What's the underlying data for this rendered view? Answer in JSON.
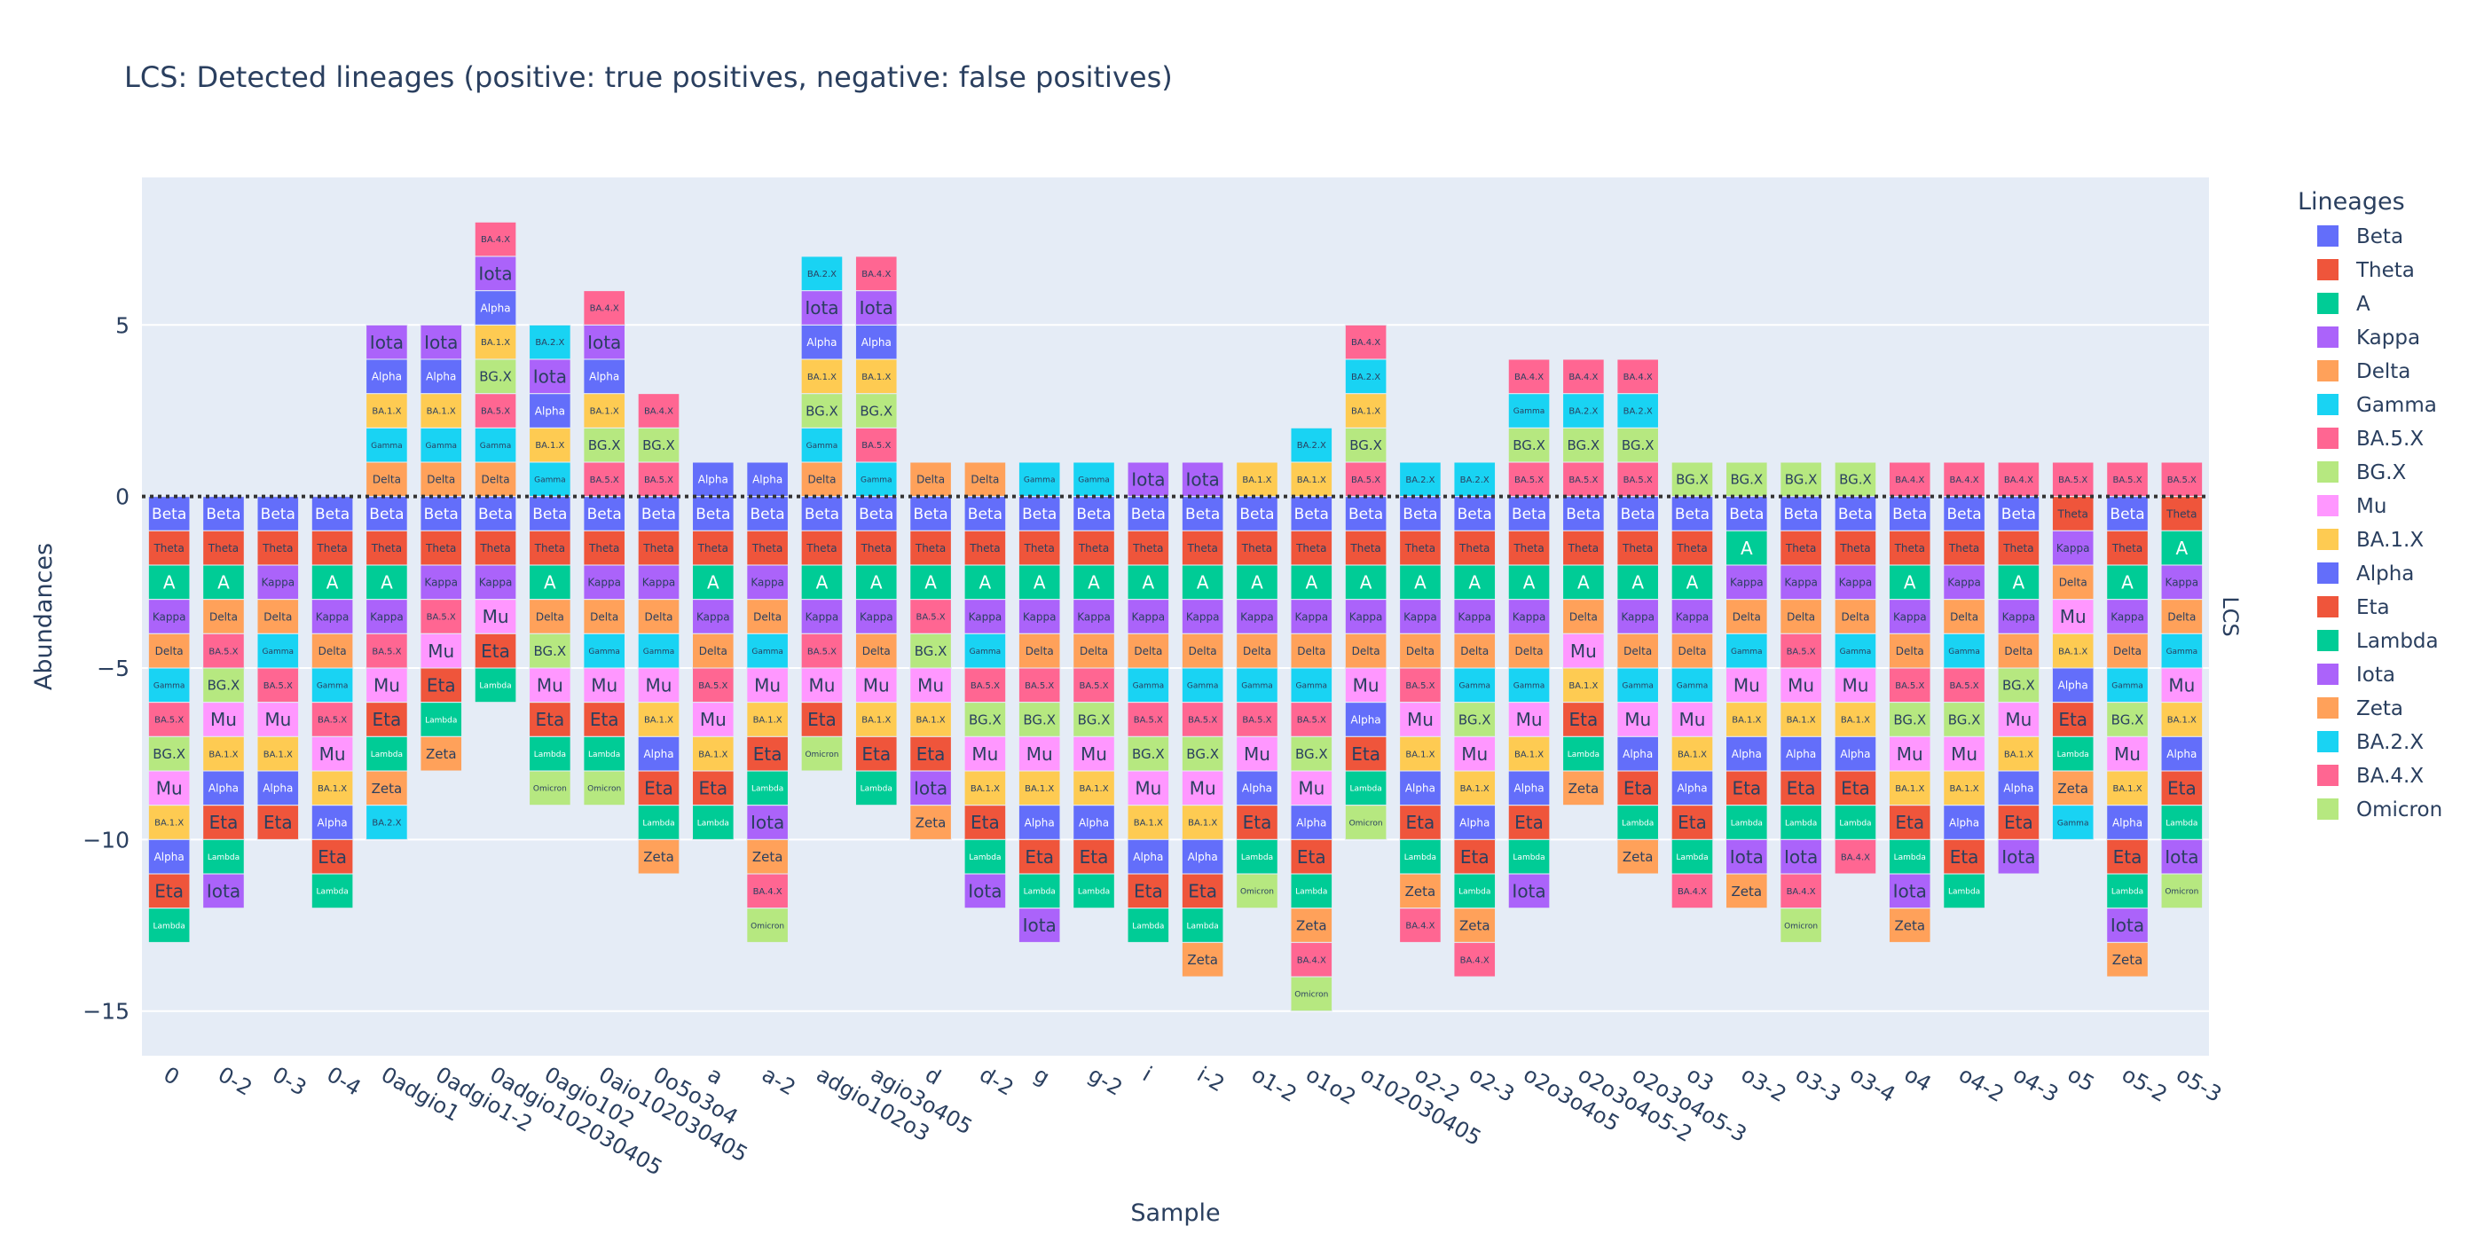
{
  "chart_data": {
    "type": "bar",
    "barmode": "relative",
    "title": "LCS: Detected lineages (positive: true positives, negative: false positives)",
    "xlabel": "Sample",
    "ylabel": "Abundances",
    "facet_label": "LCS",
    "legend_title": "Lineages",
    "legend_placement": "right",
    "ylim": [
      -16.3,
      9.3
    ],
    "yticks": [
      5,
      0,
      -5,
      -10,
      -15
    ],
    "zero_line": "dotted",
    "grid": true,
    "colors": {
      "Beta": "#636EFA",
      "Theta": "#EF553B",
      "A": "#00CC96",
      "Kappa": "#AB63FA",
      "Delta": "#FFA15A",
      "Gamma": "#19D3F3",
      "BA.5.X": "#FF6692",
      "BG.X": "#B6E880",
      "Mu": "#FF97FF",
      "BA.1.X": "#FECB52",
      "Alpha": "#636EFA",
      "Eta": "#EF553B",
      "Lambda": "#00CC96",
      "Iota": "#AB63FA",
      "Zeta": "#FFA15A",
      "BA.2.X": "#19D3F3",
      "BA.4.X": "#FF6692",
      "Omicron": "#B6E880"
    },
    "lineages": [
      "Beta",
      "Theta",
      "A",
      "Kappa",
      "Delta",
      "Gamma",
      "BA.5.X",
      "BG.X",
      "Mu",
      "BA.1.X",
      "Alpha",
      "Eta",
      "Lambda",
      "Iota",
      "Zeta",
      "BA.2.X",
      "BA.4.X",
      "Omicron"
    ],
    "categories": [
      "0",
      "0-2",
      "0-3",
      "0-4",
      "0adgio1",
      "0adgio1-2",
      "0adgio102030405",
      "0agio102",
      "0aio102030405",
      "0o5o3o4",
      "a",
      "a-2",
      "adgio102o3",
      "agio3o405",
      "d",
      "d-2",
      "g",
      "g-2",
      "i",
      "i-2",
      "o1-2",
      "o1o2",
      "o102030405",
      "o2-2",
      "o2-3",
      "o2o3o4o5",
      "o2o3o4o5-2",
      "o2o3o4o5-3",
      "o3",
      "o3-2",
      "o3-3",
      "o3-4",
      "o4",
      "o4-2",
      "o4-3",
      "o5",
      "o5-2",
      "o5-3"
    ],
    "samples": [
      {
        "pos": [],
        "neg": [
          "Beta",
          "Theta",
          "A",
          "Kappa",
          "Delta",
          "Gamma",
          "BA.5.X",
          "BG.X",
          "Mu",
          "BA.1.X",
          "Alpha",
          "Eta",
          "Lambda"
        ]
      },
      {
        "pos": [],
        "neg": [
          "Beta",
          "Theta",
          "A",
          "Delta",
          "BA.5.X",
          "BG.X",
          "Mu",
          "BA.1.X",
          "Alpha",
          "Eta",
          "Lambda",
          "Iota"
        ]
      },
      {
        "pos": [],
        "neg": [
          "Beta",
          "Theta",
          "Kappa",
          "Delta",
          "Gamma",
          "BA.5.X",
          "Mu",
          "BA.1.X",
          "Alpha",
          "Eta"
        ]
      },
      {
        "pos": [],
        "neg": [
          "Beta",
          "Theta",
          "A",
          "Kappa",
          "Delta",
          "Gamma",
          "BA.5.X",
          "Mu",
          "BA.1.X",
          "Alpha",
          "Eta",
          "Lambda"
        ]
      },
      {
        "pos": [
          "Delta",
          "Gamma",
          "BA.1.X",
          "Alpha",
          "Iota"
        ],
        "neg": [
          "Beta",
          "Theta",
          "A",
          "Kappa",
          "BA.5.X",
          "Mu",
          "Eta",
          "Lambda",
          "Zeta",
          "BA.2.X"
        ]
      },
      {
        "pos": [
          "Delta",
          "Gamma",
          "BA.1.X",
          "Alpha",
          "Iota"
        ],
        "neg": [
          "Beta",
          "Theta",
          "Kappa",
          "BA.5.X",
          "Mu",
          "Eta",
          "Lambda",
          "Zeta"
        ]
      },
      {
        "pos": [
          "Delta",
          "Gamma",
          "BA.5.X",
          "BG.X",
          "BA.1.X",
          "Alpha",
          "Iota",
          "BA.4.X"
        ],
        "neg": [
          "Beta",
          "Theta",
          "Kappa",
          "Mu",
          "Eta",
          "Lambda"
        ]
      },
      {
        "pos": [
          "Gamma",
          "BA.1.X",
          "Alpha",
          "Iota",
          "BA.2.X"
        ],
        "neg": [
          "Beta",
          "Theta",
          "A",
          "Delta",
          "BG.X",
          "Mu",
          "Eta",
          "Lambda",
          "Omicron"
        ]
      },
      {
        "pos": [
          "BA.5.X",
          "BG.X",
          "BA.1.X",
          "Alpha",
          "Iota",
          "BA.4.X"
        ],
        "neg": [
          "Beta",
          "Theta",
          "Kappa",
          "Delta",
          "Gamma",
          "Mu",
          "Eta",
          "Lambda",
          "Omicron"
        ]
      },
      {
        "pos": [
          "BA.5.X",
          "BG.X",
          "BA.4.X"
        ],
        "neg": [
          "Beta",
          "Theta",
          "Kappa",
          "Delta",
          "Gamma",
          "Mu",
          "BA.1.X",
          "Alpha",
          "Eta",
          "Lambda",
          "Zeta"
        ]
      },
      {
        "pos": [
          "Alpha"
        ],
        "neg": [
          "Beta",
          "Theta",
          "A",
          "Kappa",
          "Delta",
          "BA.5.X",
          "Mu",
          "BA.1.X",
          "Eta",
          "Lambda"
        ]
      },
      {
        "pos": [
          "Alpha"
        ],
        "neg": [
          "Beta",
          "Theta",
          "Kappa",
          "Delta",
          "Gamma",
          "Mu",
          "BA.1.X",
          "Eta",
          "Lambda",
          "Iota",
          "Zeta",
          "BA.4.X",
          "Omicron"
        ]
      },
      {
        "pos": [
          "Delta",
          "Gamma",
          "BG.X",
          "BA.1.X",
          "Alpha",
          "Iota",
          "BA.2.X"
        ],
        "neg": [
          "Beta",
          "Theta",
          "A",
          "Kappa",
          "BA.5.X",
          "Mu",
          "Eta",
          "Omicron"
        ]
      },
      {
        "pos": [
          "Gamma",
          "BA.5.X",
          "BG.X",
          "BA.1.X",
          "Alpha",
          "Iota",
          "BA.4.X"
        ],
        "neg": [
          "Beta",
          "Theta",
          "A",
          "Kappa",
          "Delta",
          "Mu",
          "BA.1.X",
          "Eta",
          "Lambda"
        ]
      },
      {
        "pos": [
          "Delta"
        ],
        "neg": [
          "Beta",
          "Theta",
          "A",
          "BA.5.X",
          "BG.X",
          "Mu",
          "BA.1.X",
          "Eta",
          "Iota",
          "Zeta"
        ]
      },
      {
        "pos": [
          "Delta"
        ],
        "neg": [
          "Beta",
          "Theta",
          "A",
          "Kappa",
          "Gamma",
          "BA.5.X",
          "BG.X",
          "Mu",
          "BA.1.X",
          "Eta",
          "Lambda",
          "Iota"
        ]
      },
      {
        "pos": [
          "Gamma"
        ],
        "neg": [
          "Beta",
          "Theta",
          "A",
          "Kappa",
          "Delta",
          "BA.5.X",
          "BG.X",
          "Mu",
          "BA.1.X",
          "Alpha",
          "Eta",
          "Lambda",
          "Iota"
        ]
      },
      {
        "pos": [
          "Gamma"
        ],
        "neg": [
          "Beta",
          "Theta",
          "A",
          "Kappa",
          "Delta",
          "BA.5.X",
          "BG.X",
          "Mu",
          "BA.1.X",
          "Alpha",
          "Eta",
          "Lambda"
        ]
      },
      {
        "pos": [
          "Iota"
        ],
        "neg": [
          "Beta",
          "Theta",
          "A",
          "Kappa",
          "Delta",
          "Gamma",
          "BA.5.X",
          "BG.X",
          "Mu",
          "BA.1.X",
          "Alpha",
          "Eta",
          "Lambda"
        ]
      },
      {
        "pos": [
          "Iota"
        ],
        "neg": [
          "Beta",
          "Theta",
          "A",
          "Kappa",
          "Delta",
          "Gamma",
          "BA.5.X",
          "BG.X",
          "Mu",
          "BA.1.X",
          "Alpha",
          "Eta",
          "Lambda",
          "Zeta"
        ]
      },
      {
        "pos": [
          "BA.1.X"
        ],
        "neg": [
          "Beta",
          "Theta",
          "A",
          "Kappa",
          "Delta",
          "Gamma",
          "BA.5.X",
          "Mu",
          "Alpha",
          "Eta",
          "Lambda",
          "Omicron"
        ]
      },
      {
        "pos": [
          "BA.1.X",
          "BA.2.X"
        ],
        "neg": [
          "Beta",
          "Theta",
          "A",
          "Kappa",
          "Delta",
          "Gamma",
          "BA.5.X",
          "BG.X",
          "Mu",
          "Alpha",
          "Eta",
          "Lambda",
          "Zeta",
          "BA.4.X",
          "Omicron"
        ]
      },
      {
        "pos": [
          "BA.5.X",
          "BG.X",
          "BA.1.X",
          "BA.2.X",
          "BA.4.X"
        ],
        "neg": [
          "Beta",
          "Theta",
          "A",
          "Kappa",
          "Delta",
          "Mu",
          "Alpha",
          "Eta",
          "Lambda",
          "Omicron"
        ]
      },
      {
        "pos": [
          "BA.2.X"
        ],
        "neg": [
          "Beta",
          "Theta",
          "A",
          "Kappa",
          "Delta",
          "BA.5.X",
          "Mu",
          "BA.1.X",
          "Alpha",
          "Eta",
          "Lambda",
          "Zeta",
          "BA.4.X"
        ]
      },
      {
        "pos": [
          "BA.2.X"
        ],
        "neg": [
          "Beta",
          "Theta",
          "A",
          "Kappa",
          "Delta",
          "Gamma",
          "BG.X",
          "Mu",
          "BA.1.X",
          "Alpha",
          "Eta",
          "Lambda",
          "Zeta",
          "BA.4.X"
        ]
      },
      {
        "pos": [
          "BA.5.X",
          "BG.X",
          "Gamma",
          "BA.4.X"
        ],
        "neg": [
          "Beta",
          "Theta",
          "A",
          "Kappa",
          "Delta",
          "Gamma",
          "Mu",
          "BA.1.X",
          "Alpha",
          "Eta",
          "Lambda",
          "Iota"
        ]
      },
      {
        "pos": [
          "BA.5.X",
          "BG.X",
          "BA.2.X",
          "BA.4.X"
        ],
        "neg": [
          "Beta",
          "Theta",
          "A",
          "Delta",
          "Mu",
          "BA.1.X",
          "Eta",
          "Lambda",
          "Zeta"
        ]
      },
      {
        "pos": [
          "BA.5.X",
          "BG.X",
          "BA.2.X",
          "BA.4.X"
        ],
        "neg": [
          "Beta",
          "Theta",
          "A",
          "Kappa",
          "Delta",
          "Gamma",
          "Mu",
          "Alpha",
          "Eta",
          "Lambda",
          "Zeta"
        ]
      },
      {
        "pos": [
          "BG.X"
        ],
        "neg": [
          "Beta",
          "Theta",
          "A",
          "Kappa",
          "Delta",
          "Gamma",
          "Mu",
          "BA.1.X",
          "Alpha",
          "Eta",
          "Lambda",
          "BA.4.X"
        ]
      },
      {
        "pos": [
          "BG.X"
        ],
        "neg": [
          "Beta",
          "A",
          "Kappa",
          "Delta",
          "Gamma",
          "Mu",
          "BA.1.X",
          "Alpha",
          "Eta",
          "Lambda",
          "Iota",
          "Zeta"
        ]
      },
      {
        "pos": [
          "BG.X"
        ],
        "neg": [
          "Beta",
          "Theta",
          "Kappa",
          "Delta",
          "BA.5.X",
          "Mu",
          "BA.1.X",
          "Alpha",
          "Eta",
          "Lambda",
          "Iota",
          "BA.4.X",
          "Omicron"
        ]
      },
      {
        "pos": [
          "BG.X"
        ],
        "neg": [
          "Beta",
          "Theta",
          "Kappa",
          "Delta",
          "Gamma",
          "Mu",
          "BA.1.X",
          "Alpha",
          "Eta",
          "Lambda",
          "BA.4.X"
        ]
      },
      {
        "pos": [
          "BA.4.X"
        ],
        "neg": [
          "Beta",
          "Theta",
          "A",
          "Kappa",
          "Delta",
          "BA.5.X",
          "BG.X",
          "Mu",
          "BA.1.X",
          "Eta",
          "Lambda",
          "Iota",
          "Zeta"
        ]
      },
      {
        "pos": [
          "BA.4.X"
        ],
        "neg": [
          "Beta",
          "Theta",
          "Kappa",
          "Delta",
          "Gamma",
          "BA.5.X",
          "BG.X",
          "Mu",
          "BA.1.X",
          "Alpha",
          "Eta",
          "Lambda"
        ]
      },
      {
        "pos": [
          "BA.4.X"
        ],
        "neg": [
          "Beta",
          "Theta",
          "A",
          "Kappa",
          "Delta",
          "BG.X",
          "Mu",
          "BA.1.X",
          "Alpha",
          "Eta",
          "Iota"
        ]
      },
      {
        "pos": [
          "BA.5.X"
        ],
        "neg": [
          "Theta",
          "Kappa",
          "Delta",
          "Mu",
          "BA.1.X",
          "Alpha",
          "Eta",
          "Lambda",
          "Zeta",
          "Gamma"
        ]
      },
      {
        "pos": [
          "BA.5.X"
        ],
        "neg": [
          "Beta",
          "Theta",
          "A",
          "Kappa",
          "Delta",
          "Gamma",
          "BG.X",
          "Mu",
          "BA.1.X",
          "Alpha",
          "Eta",
          "Lambda",
          "Iota",
          "Zeta"
        ]
      },
      {
        "pos": [
          "BA.5.X"
        ],
        "neg": [
          "Theta",
          "A",
          "Kappa",
          "Delta",
          "Gamma",
          "Mu",
          "BA.1.X",
          "Alpha",
          "Eta",
          "Lambda",
          "Iota",
          "Omicron"
        ]
      }
    ]
  }
}
